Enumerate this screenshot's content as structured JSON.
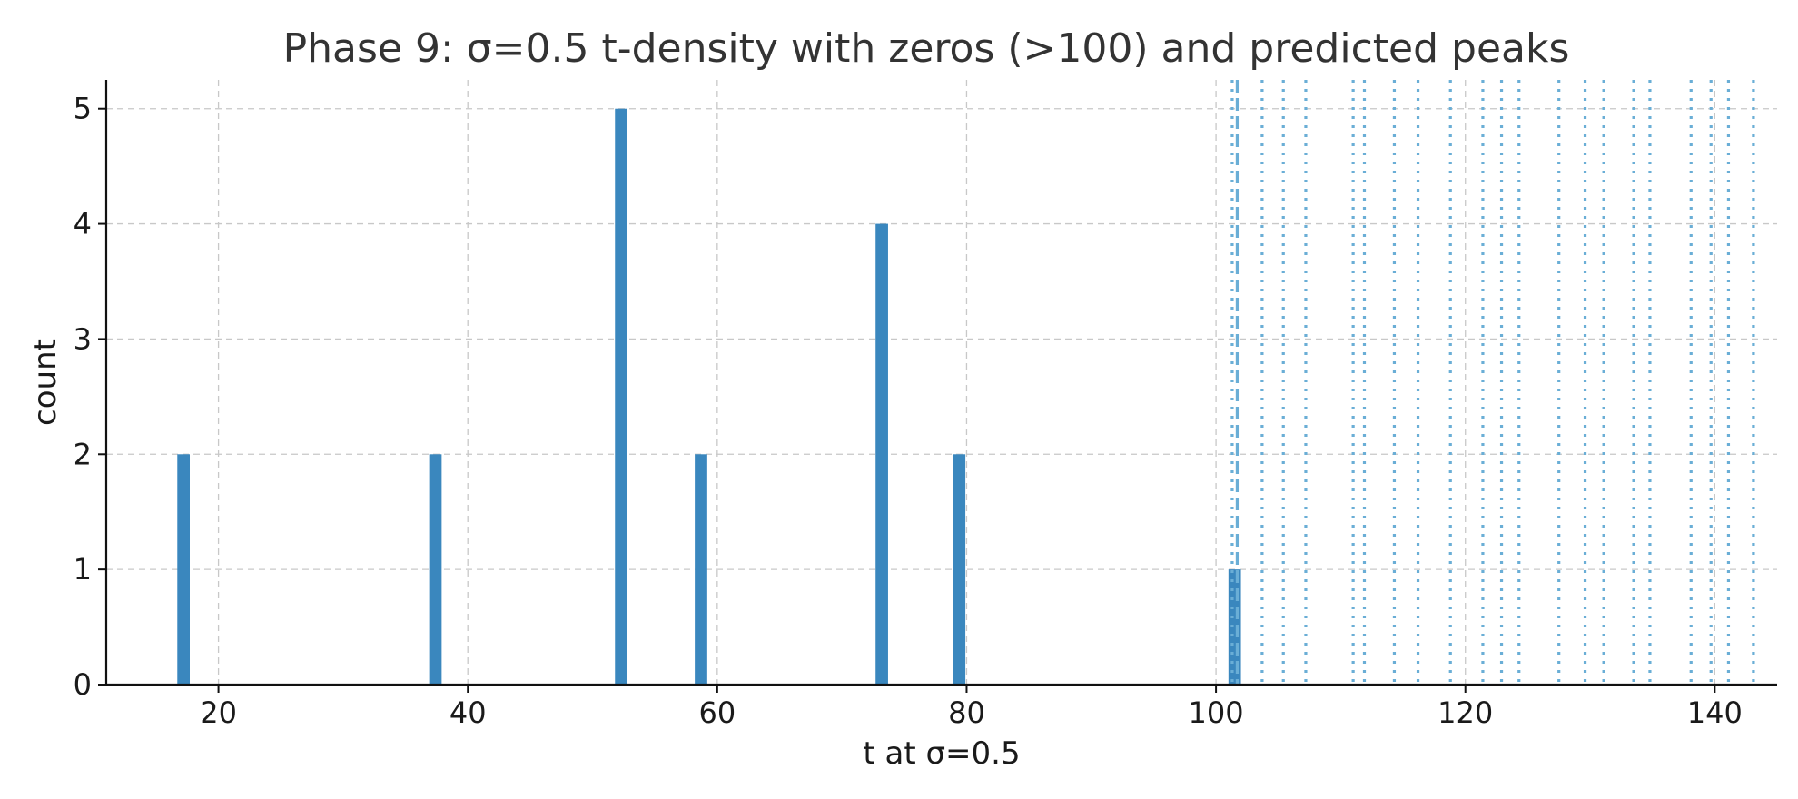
{
  "chart_data": {
    "type": "bar",
    "title": "Phase 9: σ=0.5 t-density with zeros (>100) and predicted peaks",
    "xlabel": "t at σ=0.5",
    "ylabel": "count",
    "xlim": [
      11,
      145
    ],
    "ylim": [
      0,
      5.25
    ],
    "x_ticks": [
      20,
      40,
      60,
      80,
      100,
      120,
      140
    ],
    "y_ticks": [
      0,
      1,
      2,
      3,
      4,
      5
    ],
    "grid": true,
    "bar_color": "#3a87be",
    "bar_width": 1.0,
    "series": [
      {
        "bins": [
          {
            "x": 17.2,
            "value": 2
          },
          {
            "x": 37.4,
            "value": 2
          },
          {
            "x": 52.3,
            "value": 5
          },
          {
            "x": 58.7,
            "value": 2
          },
          {
            "x": 73.2,
            "value": 4
          },
          {
            "x": 79.4,
            "value": 2
          },
          {
            "x": 101.5,
            "value": 1
          }
        ]
      }
    ],
    "zeros_color": "#6aaed6",
    "zeros_gt_100": [
      101.3,
      103.7,
      105.4,
      107.2,
      111.0,
      111.9,
      114.3,
      116.2,
      118.8,
      121.4,
      122.9,
      124.3,
      127.5,
      129.6,
      131.1,
      133.5,
      134.8,
      138.1,
      139.7,
      141.1,
      143.1
    ],
    "predicted_peaks": [
      101.7
    ]
  }
}
